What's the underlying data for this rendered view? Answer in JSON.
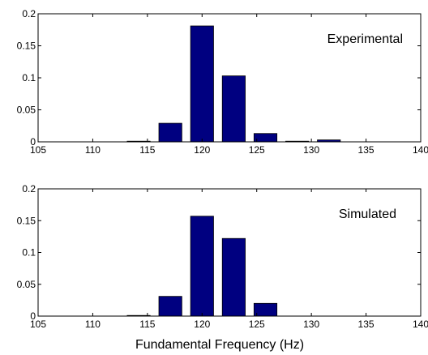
{
  "figure": {
    "xlabel": "Fundamental Frequency (Hz)"
  },
  "colors": {
    "bar_fill": "#000080",
    "bar_edge": "#000000",
    "axis": "#000000",
    "background": "#ffffff"
  },
  "chart_data": [
    {
      "type": "bar",
      "panel_label": "Experimental",
      "xlim": [
        105,
        140
      ],
      "ylim": [
        0,
        0.2
      ],
      "xticks": [
        105,
        110,
        115,
        120,
        125,
        130,
        135,
        140
      ],
      "xtick_labels": [
        "105",
        "110",
        "115",
        "120",
        "125",
        "130",
        "135",
        "140"
      ],
      "yticks": [
        0,
        0.05,
        0.1,
        0.15,
        0.2
      ],
      "ytick_labels": [
        "0",
        "0.05",
        "0.1",
        "0.15",
        "0.2"
      ],
      "bar_width": 2.1,
      "x": [
        114.2,
        117.1,
        120.0,
        122.9,
        125.8,
        128.7,
        131.6
      ],
      "values": [
        0.001,
        0.029,
        0.181,
        0.103,
        0.013,
        0.001,
        0.003
      ],
      "grid": false
    },
    {
      "type": "bar",
      "panel_label": "Simulated",
      "xlim": [
        105,
        140
      ],
      "ylim": [
        0,
        0.2
      ],
      "xticks": [
        105,
        110,
        115,
        120,
        125,
        130,
        135,
        140
      ],
      "xtick_labels": [
        "105",
        "110",
        "115",
        "120",
        "125",
        "130",
        "135",
        "140"
      ],
      "yticks": [
        0,
        0.05,
        0.1,
        0.15,
        0.2
      ],
      "ytick_labels": [
        "0",
        "0.05",
        "0.1",
        "0.15",
        "0.2"
      ],
      "bar_width": 2.1,
      "x": [
        114.2,
        117.1,
        120.0,
        122.9,
        125.8
      ],
      "values": [
        0.001,
        0.031,
        0.157,
        0.122,
        0.02
      ],
      "grid": false
    }
  ]
}
